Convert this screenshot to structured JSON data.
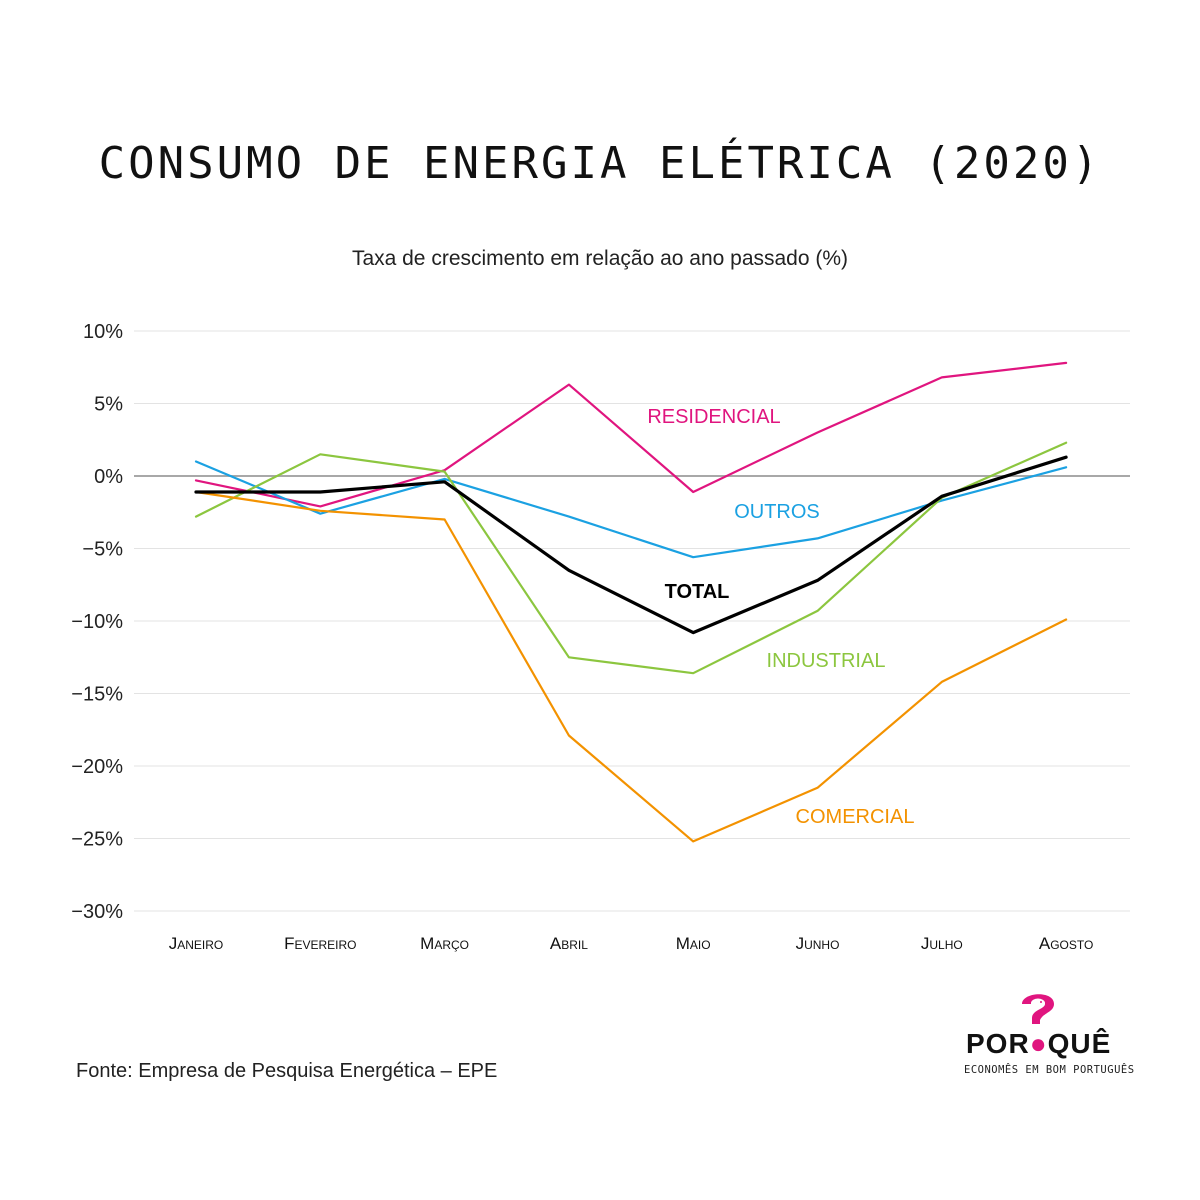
{
  "title": "CONSUMO DE ENERGIA ELÉTRICA (2020)",
  "subtitle": "Taxa de crescimento em relação ao ano passado (%)",
  "source": "Fonte: Empresa de Pesquisa Energética – EPE",
  "logo": {
    "word_left": "POR",
    "word_right": "QUÊ",
    "tagline": "ECONOMÊS EM BOM PORTUGUÊS",
    "accent_color": "#e0157f"
  },
  "chart_data": {
    "type": "line",
    "categories": [
      "Janeiro",
      "Fevereiro",
      "Março",
      "Abril",
      "Maio",
      "Junho",
      "Julho",
      "Agosto"
    ],
    "ylim": [
      -30,
      10
    ],
    "yticks": [
      10,
      5,
      0,
      -5,
      -10,
      -15,
      -20,
      -25,
      -30
    ],
    "ytick_labels": [
      "10%",
      "5%",
      "0%",
      "−5%",
      "−10%",
      "−15%",
      "−20%",
      "−25%",
      "−30%"
    ],
    "grid": true,
    "series": [
      {
        "name": "RESIDENCIAL",
        "color": "#e0157f",
        "values": [
          -0.3,
          -2.1,
          0.4,
          6.3,
          -1.1,
          3.0,
          6.8,
          7.8
        ]
      },
      {
        "name": "OUTROS",
        "color": "#1ba1e2",
        "values": [
          1.0,
          -2.6,
          -0.2,
          -2.8,
          -5.6,
          -4.3,
          -1.7,
          0.6
        ]
      },
      {
        "name": "INDUSTRIAL",
        "color": "#8cc63f",
        "values": [
          -2.8,
          1.5,
          0.3,
          -12.5,
          -13.6,
          -9.3,
          -1.5,
          2.3
        ]
      },
      {
        "name": "COMERCIAL",
        "color": "#f39200",
        "values": [
          -1.1,
          -2.4,
          -3.0,
          -17.9,
          -25.2,
          -21.5,
          -14.2,
          -9.9
        ]
      },
      {
        "name": "TOTAL",
        "color": "#000000",
        "values": [
          -1.1,
          -1.1,
          -0.4,
          -6.5,
          -10.8,
          -7.2,
          -1.4,
          1.3
        ],
        "bold": true
      }
    ]
  }
}
